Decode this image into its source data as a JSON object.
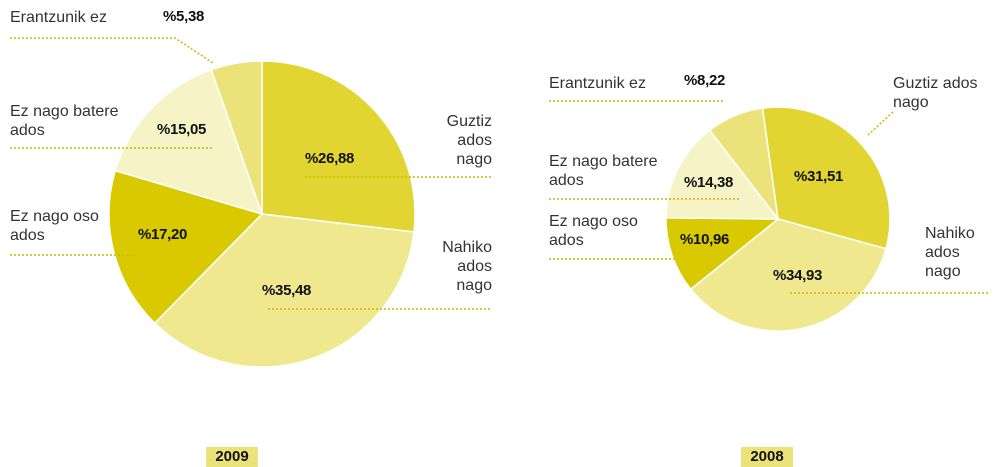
{
  "chart_data": [
    {
      "type": "pie",
      "title": "2009",
      "categories": [
        "Guztiz ados nago",
        "Nahiko ados nago",
        "Ez nago oso ados",
        "Ez nago batere ados",
        "Erantzunik ez"
      ],
      "values": [
        26.88,
        35.48,
        17.2,
        15.05,
        5.38
      ],
      "value_labels": [
        "%26,88",
        "%35,48",
        "%17,20",
        "%15,05",
        "%5,38"
      ],
      "colors": [
        "#e3d531",
        "#efe88f",
        "#d9c900",
        "#f6f3c6",
        "#ece27a"
      ]
    },
    {
      "type": "pie",
      "title": "2008",
      "categories": [
        "Guztiz ados nago",
        "Nahiko ados nago",
        "Ez nago oso ados",
        "Ez nago batere ados",
        "Erantzunik ez"
      ],
      "values": [
        31.51,
        34.93,
        10.96,
        14.38,
        8.22
      ],
      "value_labels": [
        "%31,51",
        "%34,93",
        "%10,96",
        "%14,38",
        "%8,22"
      ],
      "colors": [
        "#e3d531",
        "#efe88f",
        "#d9c900",
        "#f6f3c6",
        "#ece27a"
      ]
    }
  ]
}
